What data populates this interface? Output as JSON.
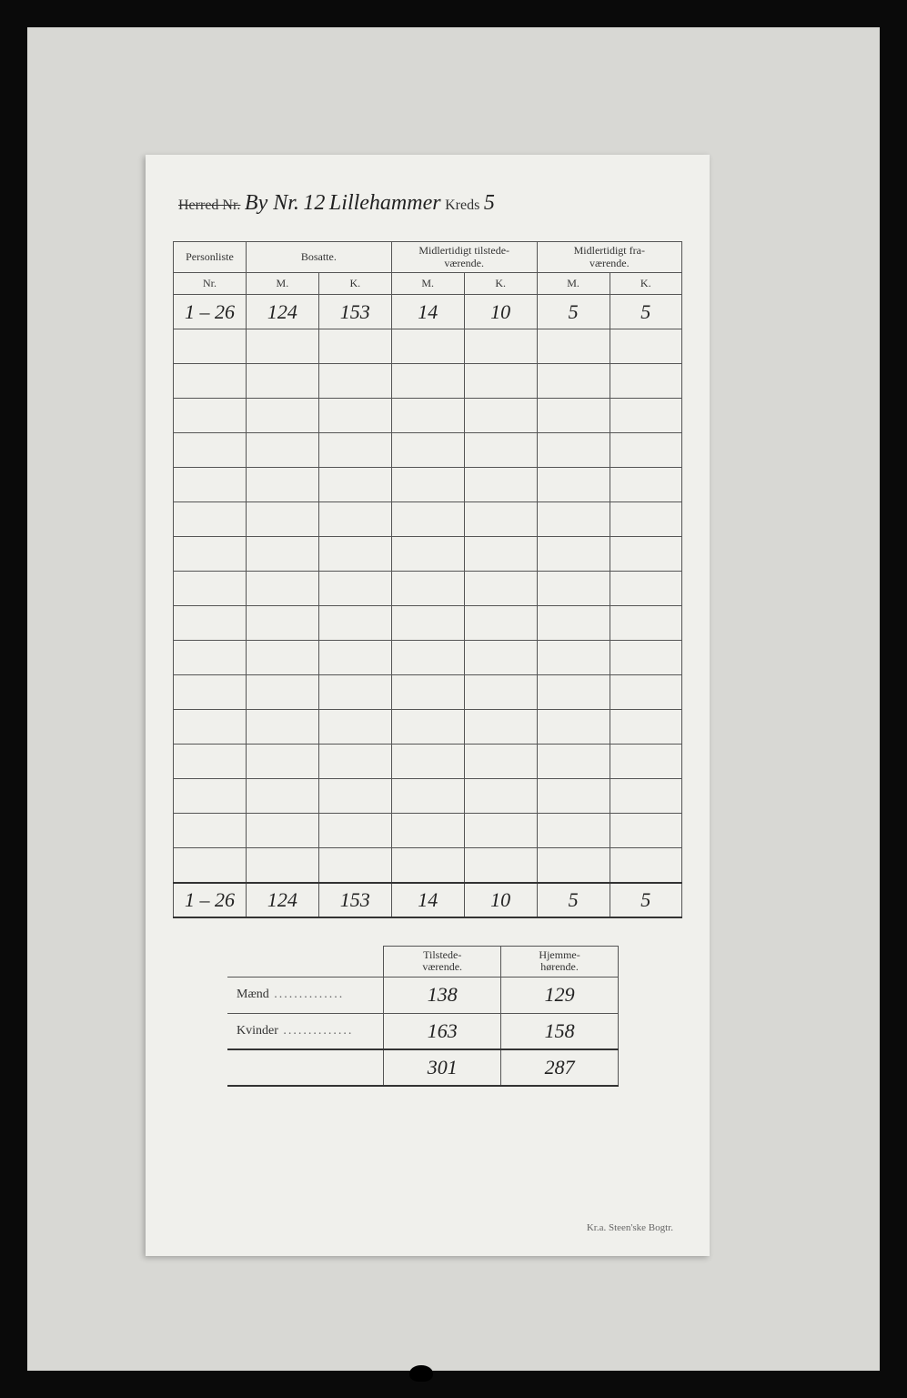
{
  "header": {
    "herred_label": "Herred Nr.",
    "by_prefix": "By Nr.",
    "by_number": "12",
    "by_name": "Lillehammer",
    "kreds_label": "Kreds",
    "kreds_number": "5"
  },
  "main_table": {
    "columns": {
      "personliste": "Personliste",
      "personliste_sub": "Nr.",
      "bosatte": "Bosatte.",
      "midl_tilstede": "Midlertidigt tilstede-\nværende.",
      "midl_fra": "Midlertidigt fra-\nværende.",
      "m": "M.",
      "k": "K."
    },
    "data_row": {
      "nr": "1 – 26",
      "bosatte_m": "124",
      "bosatte_k": "153",
      "tilstede_m": "14",
      "tilstede_k": "10",
      "fra_m": "5",
      "fra_k": "5"
    },
    "empty_rows": 16,
    "totals": {
      "nr": "1 – 26",
      "bosatte_m": "124",
      "bosatte_k": "153",
      "tilstede_m": "14",
      "tilstede_k": "10",
      "fra_m": "5",
      "fra_k": "5"
    }
  },
  "summary": {
    "col_tilstede": "Tilstede-\nværende.",
    "col_hjemme": "Hjemme-\nhørende.",
    "rows": [
      {
        "label": "Mænd",
        "tilstede": "138",
        "hjemme": "129"
      },
      {
        "label": "Kvinder",
        "tilstede": "163",
        "hjemme": "158"
      }
    ],
    "totals": {
      "tilstede": "301",
      "hjemme": "287"
    }
  },
  "footer": "Kr.a.  Steen'ske Bogtr.",
  "colors": {
    "page_bg": "#f0f0ec",
    "outer_bg": "#d8d8d4",
    "frame_bg": "#0a0a0a",
    "line": "#555",
    "text": "#333",
    "hand": "#222"
  }
}
